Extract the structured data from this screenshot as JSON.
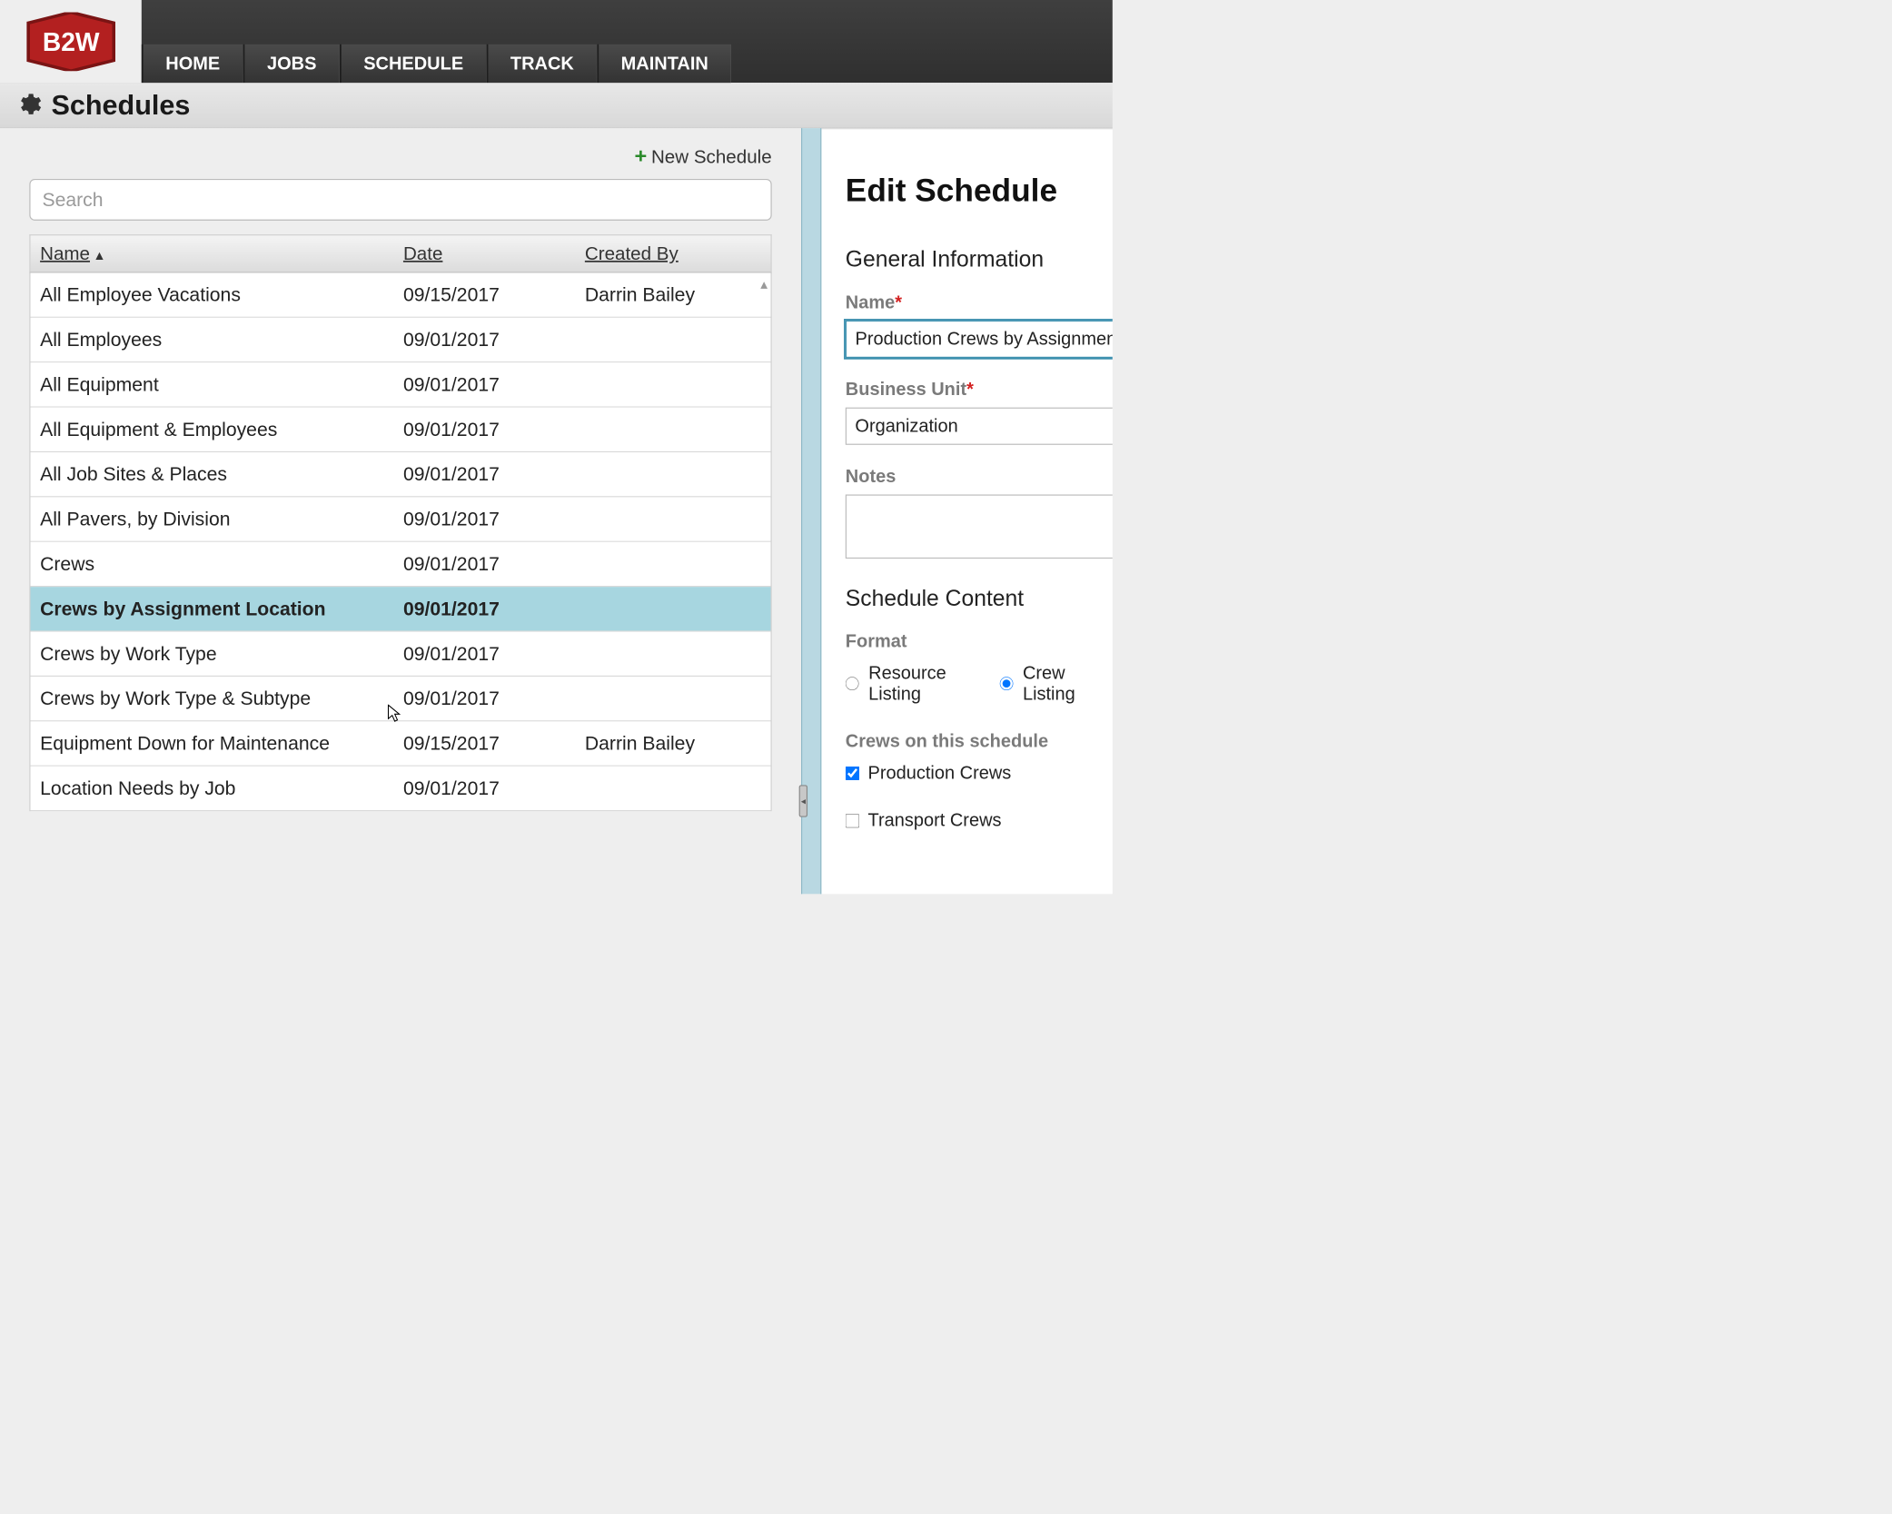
{
  "colors": {
    "topbar_bg_top": "#3f3f3f",
    "topbar_bg_bottom": "#2f2f2f",
    "logo_red": "#b32020",
    "logo_dark_red": "#7a1414",
    "selected_row_bg": "#a7d6e0",
    "divider_bg": "#b9d8e2",
    "plus_green": "#2a8a2a",
    "required_red": "#d32020",
    "input_focus_border": "#3b8fae",
    "label_gray": "#7a7a7a"
  },
  "logo_text": "B2W",
  "nav": [
    {
      "label": "HOME"
    },
    {
      "label": "JOBS"
    },
    {
      "label": "SCHEDULE"
    },
    {
      "label": "TRACK"
    },
    {
      "label": "MAINTAIN"
    }
  ],
  "page_title": "Schedules",
  "left": {
    "new_schedule_label": "New Schedule",
    "search_placeholder": "Search",
    "columns": {
      "name": "Name",
      "date": "Date",
      "created_by": "Created By"
    },
    "sort_indicator": "▲",
    "rows": [
      {
        "name": "All Employee Vacations",
        "date": "09/15/2017",
        "created_by": "Darrin Bailey",
        "selected": false
      },
      {
        "name": "All Employees",
        "date": "09/01/2017",
        "created_by": "",
        "selected": false
      },
      {
        "name": "All Equipment",
        "date": "09/01/2017",
        "created_by": "",
        "selected": false
      },
      {
        "name": "All Equipment & Employees",
        "date": "09/01/2017",
        "created_by": "",
        "selected": false
      },
      {
        "name": "All Job Sites & Places",
        "date": "09/01/2017",
        "created_by": "",
        "selected": false
      },
      {
        "name": "All Pavers, by Division",
        "date": "09/01/2017",
        "created_by": "",
        "selected": false
      },
      {
        "name": "Crews",
        "date": "09/01/2017",
        "created_by": "",
        "selected": false
      },
      {
        "name": "Crews by Assignment Location",
        "date": "09/01/2017",
        "created_by": "",
        "selected": true
      },
      {
        "name": "Crews by Work Type",
        "date": "09/01/2017",
        "created_by": "",
        "selected": false
      },
      {
        "name": "Crews by Work Type & Subtype",
        "date": "09/01/2017",
        "created_by": "",
        "selected": false
      },
      {
        "name": "Equipment Down for Maintenance",
        "date": "09/15/2017",
        "created_by": "Darrin Bailey",
        "selected": false
      },
      {
        "name": "Location Needs by Job",
        "date": "09/01/2017",
        "created_by": "",
        "selected": false
      }
    ]
  },
  "right": {
    "title": "Edit Schedule",
    "section_general": "General Information",
    "name_label": "Name",
    "name_value": "Production Crews by Assignment",
    "bu_label": "Business Unit",
    "bu_value": "Organization",
    "notes_label": "Notes",
    "notes_value": "",
    "section_content": "Schedule Content",
    "format_label": "Format",
    "format_options": [
      {
        "label": "Resource Listing",
        "checked": false
      },
      {
        "label": "Crew Listing",
        "checked": true
      }
    ],
    "crews_label": "Crews on this schedule",
    "crews_options": [
      {
        "label": "Production Crews",
        "checked": true
      },
      {
        "label": "Transport Crews",
        "checked": false
      }
    ]
  }
}
